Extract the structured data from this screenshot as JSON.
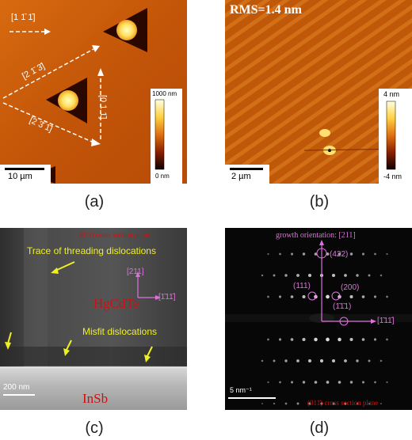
{
  "figure": {
    "captions": {
      "a": "(a)",
      "b": "(b)",
      "c": "(c)",
      "d": "(d)"
    }
  },
  "panel_a": {
    "directions": {
      "d1": "[1 1̄ 1̄]",
      "d2": "[2 1̄ 3̄]",
      "d3": "[0 1 1̄]",
      "d4": "[2 3̄ 1̄]"
    },
    "colorbar": {
      "max": "1000 nm",
      "min": "0 nm"
    },
    "scalebar": "10 µm"
  },
  "panel_b": {
    "rms": "RMS=1.4 nm",
    "colorbar": {
      "max": "4 nm",
      "min": "-4 nm"
    },
    "scalebar": "2 µm"
  },
  "panel_c": {
    "plane": "(011̄) cross section plane",
    "trace_label": "Trace of threading dislocations",
    "axis_up": "[211]",
    "axis_right": "[1̄11̄]",
    "layer_top": "HgCdTe",
    "misfit_label": "Misfit dislocations",
    "layer_bottom": "InSb",
    "scalebar": "200 nm"
  },
  "panel_d": {
    "growth": "growth orientation: [211]",
    "spots": {
      "s422": "(422)",
      "s111": "(111)",
      "s200": "(200)",
      "s1b11": "(1̄1̄1)"
    },
    "axis_right": "[1̄11̄]",
    "scalebar": "5 nm⁻¹",
    "plane": "(011̄) cross section plane"
  },
  "colors": {
    "afm_dark": "#3a0e00",
    "afm_mid": "#c45a08",
    "afm_bright": "#ffffa0",
    "magenta": "#e070e0",
    "yellow_text": "#f0f020",
    "red_text": "#d01010"
  }
}
